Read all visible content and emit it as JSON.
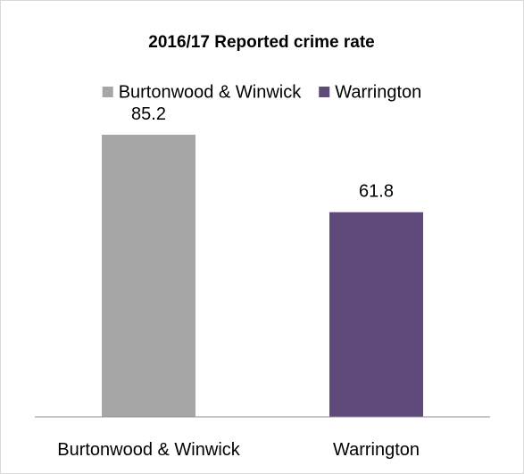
{
  "chart_data": {
    "type": "bar",
    "title": "2016/17 Reported crime rate",
    "categories": [
      "Burtonwood & Winwick",
      "Warrington"
    ],
    "values": [
      85.2,
      61.8
    ],
    "data_labels": [
      "85.2",
      "61.8"
    ],
    "colors": [
      "#a6a6a6",
      "#604a7b"
    ],
    "legend": {
      "placement": "top",
      "entries": [
        {
          "label": "Burtonwood & Winwick",
          "color": "#a6a6a6"
        },
        {
          "label": "Warrington",
          "color": "#604a7b"
        }
      ]
    },
    "xlabel": "",
    "ylabel": "",
    "ylim": [
      0,
      100
    ],
    "grid": false,
    "y_axis_visible": false
  }
}
